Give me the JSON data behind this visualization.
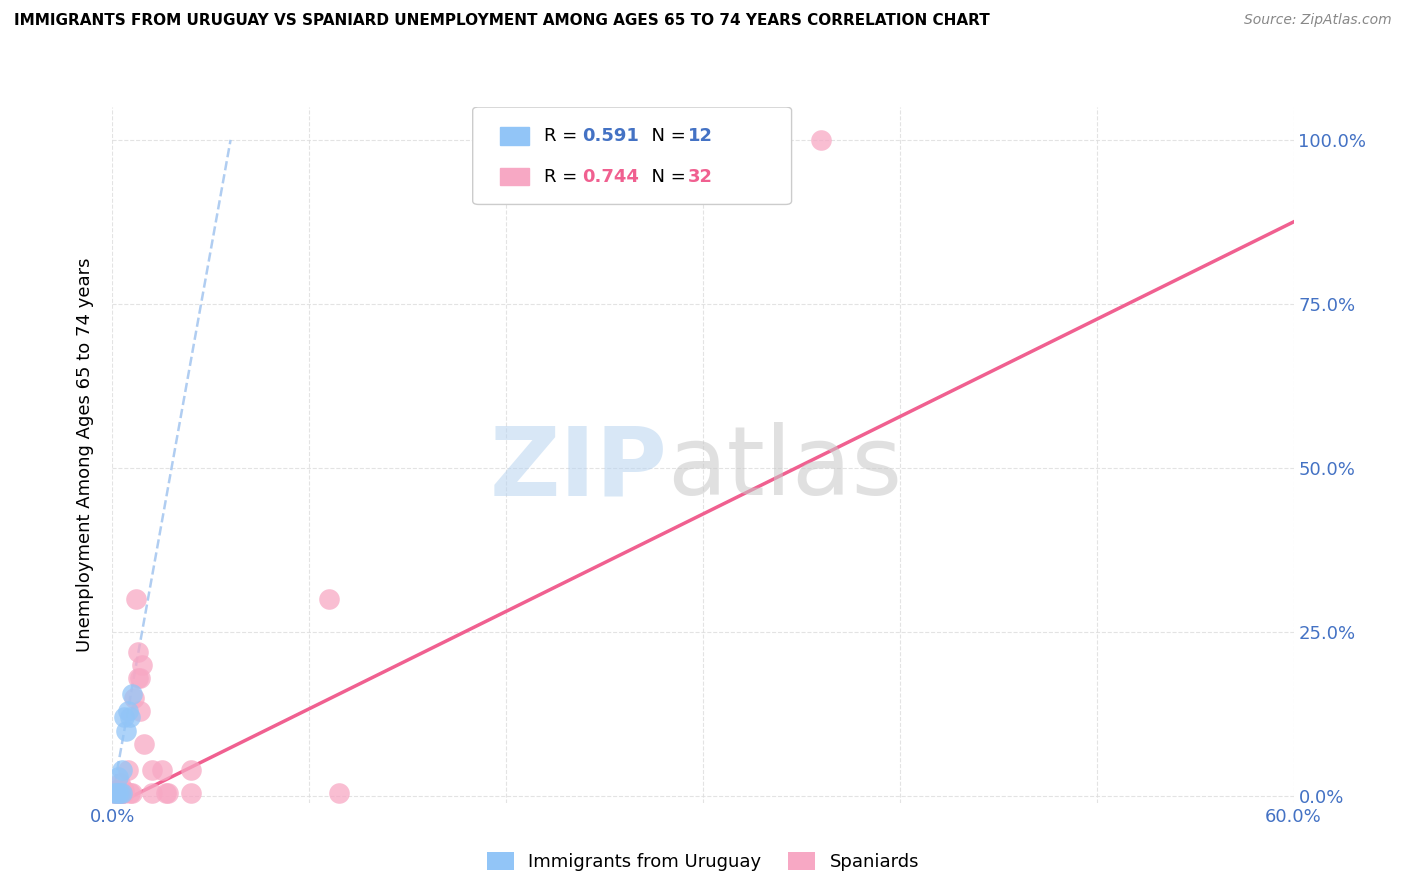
{
  "title": "IMMIGRANTS FROM URUGUAY VS SPANIARD UNEMPLOYMENT AMONG AGES 65 TO 74 YEARS CORRELATION CHART",
  "source": "Source: ZipAtlas.com",
  "tick_color": "#4472c4",
  "ylabel": "Unemployment Among Ages 65 to 74 years",
  "xlim": [
    0.0,
    0.6
  ],
  "ylim": [
    -0.01,
    1.05
  ],
  "yticks": [
    0.0,
    0.25,
    0.5,
    0.75,
    1.0
  ],
  "ytick_labels": [
    "0.0%",
    "25.0%",
    "50.0%",
    "75.0%",
    "100.0%"
  ],
  "xticks": [
    0.0,
    0.1,
    0.2,
    0.3,
    0.4,
    0.5,
    0.6
  ],
  "xtick_labels": [
    "0.0%",
    "",
    "",
    "",
    "",
    "",
    "60.0%"
  ],
  "legend_r_uruguay": "0.591",
  "legend_n_uruguay": "12",
  "legend_r_spaniards": "0.744",
  "legend_n_spaniards": "32",
  "uruguay_color": "#92C5F7",
  "spaniard_color": "#F7A8C4",
  "uruguay_line_color": "#A8C8F0",
  "spaniard_line_color": "#F06090",
  "uruguay_points": [
    [
      0.001,
      0.005
    ],
    [
      0.002,
      0.005
    ],
    [
      0.003,
      0.005
    ],
    [
      0.004,
      0.005
    ],
    [
      0.005,
      0.005
    ],
    [
      0.003,
      0.03
    ],
    [
      0.005,
      0.04
    ],
    [
      0.006,
      0.12
    ],
    [
      0.007,
      0.1
    ],
    [
      0.008,
      0.13
    ],
    [
      0.009,
      0.12
    ],
    [
      0.01,
      0.155
    ]
  ],
  "spaniard_points": [
    [
      0.001,
      0.005
    ],
    [
      0.002,
      0.005
    ],
    [
      0.002,
      0.01
    ],
    [
      0.003,
      0.005
    ],
    [
      0.003,
      0.01
    ],
    [
      0.004,
      0.005
    ],
    [
      0.004,
      0.02
    ],
    [
      0.005,
      0.005
    ],
    [
      0.005,
      0.005
    ],
    [
      0.006,
      0.005
    ],
    [
      0.006,
      0.01
    ],
    [
      0.008,
      0.04
    ],
    [
      0.009,
      0.005
    ],
    [
      0.01,
      0.005
    ],
    [
      0.011,
      0.15
    ],
    [
      0.012,
      0.3
    ],
    [
      0.013,
      0.22
    ],
    [
      0.013,
      0.18
    ],
    [
      0.014,
      0.18
    ],
    [
      0.014,
      0.13
    ],
    [
      0.015,
      0.2
    ],
    [
      0.016,
      0.08
    ],
    [
      0.02,
      0.005
    ],
    [
      0.02,
      0.04
    ],
    [
      0.025,
      0.04
    ],
    [
      0.027,
      0.005
    ],
    [
      0.028,
      0.005
    ],
    [
      0.04,
      0.005
    ],
    [
      0.04,
      0.04
    ],
    [
      0.11,
      0.3
    ],
    [
      0.115,
      0.005
    ],
    [
      0.36,
      1.0
    ]
  ],
  "uruguay_trendline": [
    0.0,
    0.0,
    0.06,
    1.0
  ],
  "spaniard_trendline": [
    0.0,
    -0.015,
    0.6,
    0.875
  ]
}
